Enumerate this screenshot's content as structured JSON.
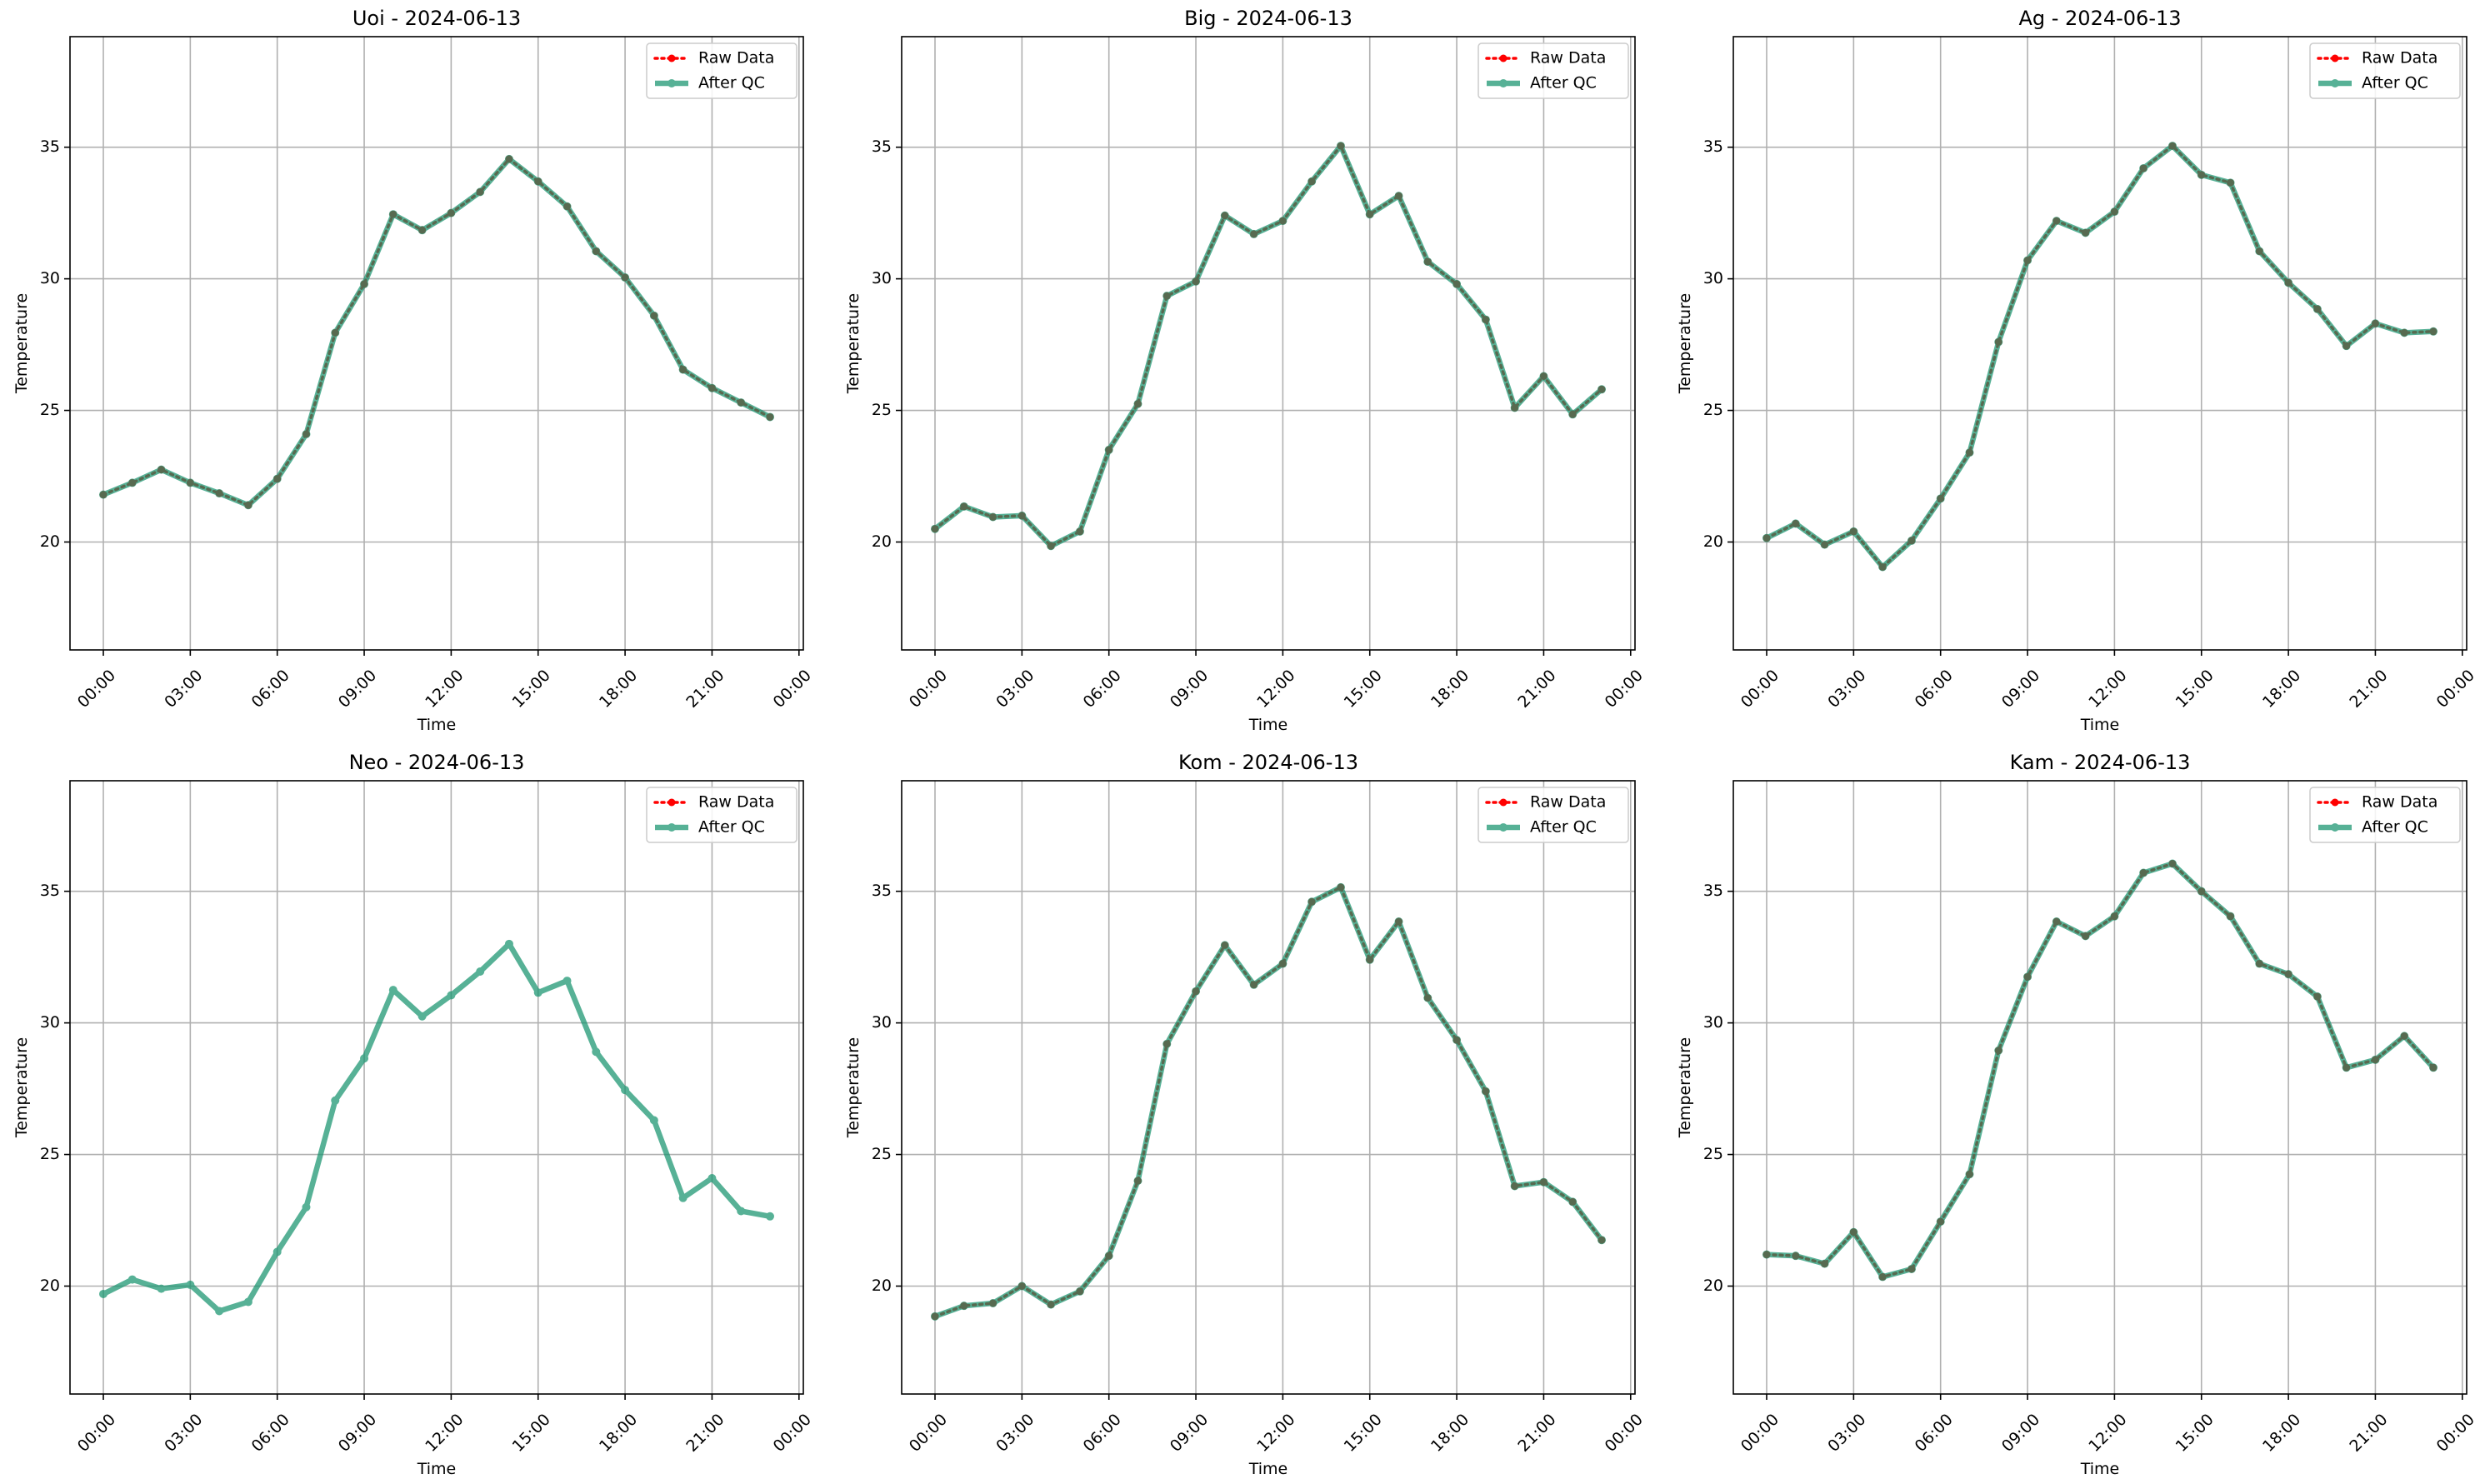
{
  "chart_data": [
    {
      "type": "line",
      "title": "Uoi - 2024-06-13",
      "xlabel": "Time",
      "ylabel": "Temperature",
      "x": [
        0,
        1,
        2,
        3,
        4,
        5,
        6,
        7,
        8,
        9,
        10,
        11,
        12,
        13,
        14,
        15,
        16,
        17,
        18,
        19,
        20,
        21,
        22,
        23
      ],
      "xlim": [
        -1.15,
        24.15
      ],
      "xticks": [
        {
          "value": 0,
          "label": "00:00"
        },
        {
          "value": 3,
          "label": "03:00"
        },
        {
          "value": 6,
          "label": "06:00"
        },
        {
          "value": 9,
          "label": "09:00"
        },
        {
          "value": 12,
          "label": "12:00"
        },
        {
          "value": 15,
          "label": "15:00"
        },
        {
          "value": 18,
          "label": "18:00"
        },
        {
          "value": 21,
          "label": "21:00"
        },
        {
          "value": 24,
          "label": "00:00"
        }
      ],
      "ylim": [
        15.9,
        39.2
      ],
      "yticks": [
        20,
        25,
        30,
        35
      ],
      "grid": true,
      "legend": "upper right",
      "series": [
        {
          "name": "Raw Data",
          "color": "#ff0000",
          "values": [
            21.8,
            22.25,
            22.75,
            22.25,
            21.85,
            21.4,
            22.4,
            24.1,
            27.95,
            29.8,
            32.45,
            31.85,
            32.5,
            33.3,
            34.55,
            33.7,
            32.75,
            31.05,
            30.05,
            28.6,
            26.55,
            25.85,
            25.3,
            24.75
          ]
        },
        {
          "name": "After QC",
          "color": "#17946f",
          "values": [
            21.8,
            22.25,
            22.75,
            22.25,
            21.85,
            21.4,
            22.4,
            24.1,
            27.95,
            29.8,
            32.45,
            31.85,
            32.5,
            33.3,
            34.55,
            33.7,
            32.75,
            31.05,
            30.05,
            28.6,
            26.55,
            25.85,
            25.3,
            24.75
          ]
        }
      ]
    },
    {
      "type": "line",
      "title": "Big - 2024-06-13",
      "xlabel": "Time",
      "ylabel": "Temperature",
      "x": [
        0,
        1,
        2,
        3,
        4,
        5,
        6,
        7,
        8,
        9,
        10,
        11,
        12,
        13,
        14,
        15,
        16,
        17,
        18,
        19,
        20,
        21,
        22,
        23
      ],
      "xlim": [
        -1.15,
        24.15
      ],
      "xticks": [
        {
          "value": 0,
          "label": "00:00"
        },
        {
          "value": 3,
          "label": "03:00"
        },
        {
          "value": 6,
          "label": "06:00"
        },
        {
          "value": 9,
          "label": "09:00"
        },
        {
          "value": 12,
          "label": "12:00"
        },
        {
          "value": 15,
          "label": "15:00"
        },
        {
          "value": 18,
          "label": "18:00"
        },
        {
          "value": 21,
          "label": "21:00"
        },
        {
          "value": 24,
          "label": "00:00"
        }
      ],
      "ylim": [
        15.9,
        39.2
      ],
      "yticks": [
        20,
        25,
        30,
        35
      ],
      "grid": true,
      "legend": "upper right",
      "series": [
        {
          "name": "Raw Data",
          "color": "#ff0000",
          "values": [
            20.5,
            21.35,
            20.95,
            21.0,
            19.85,
            20.4,
            23.5,
            25.25,
            29.35,
            29.9,
            32.4,
            31.7,
            32.2,
            33.7,
            35.05,
            32.45,
            33.15,
            30.65,
            29.8,
            28.45,
            25.1,
            26.3,
            24.85,
            25.8
          ]
        },
        {
          "name": "After QC",
          "color": "#17946f",
          "values": [
            20.5,
            21.35,
            20.95,
            21.0,
            19.85,
            20.4,
            23.5,
            25.25,
            29.35,
            29.9,
            32.4,
            31.7,
            32.2,
            33.7,
            35.05,
            32.45,
            33.15,
            30.65,
            29.8,
            28.45,
            25.1,
            26.3,
            24.85,
            25.8
          ]
        }
      ]
    },
    {
      "type": "line",
      "title": "Ag - 2024-06-13",
      "xlabel": "Time",
      "ylabel": "Temperature",
      "x": [
        0,
        1,
        2,
        3,
        4,
        5,
        6,
        7,
        8,
        9,
        10,
        11,
        12,
        13,
        14,
        15,
        16,
        17,
        18,
        19,
        20,
        21,
        22,
        23
      ],
      "xlim": [
        -1.15,
        24.15
      ],
      "xticks": [
        {
          "value": 0,
          "label": "00:00"
        },
        {
          "value": 3,
          "label": "03:00"
        },
        {
          "value": 6,
          "label": "06:00"
        },
        {
          "value": 9,
          "label": "09:00"
        },
        {
          "value": 12,
          "label": "12:00"
        },
        {
          "value": 15,
          "label": "15:00"
        },
        {
          "value": 18,
          "label": "18:00"
        },
        {
          "value": 21,
          "label": "21:00"
        },
        {
          "value": 24,
          "label": "00:00"
        }
      ],
      "ylim": [
        15.9,
        39.2
      ],
      "yticks": [
        20,
        25,
        30,
        35
      ],
      "grid": true,
      "legend": "upper right",
      "series": [
        {
          "name": "Raw Data",
          "color": "#ff0000",
          "values": [
            20.15,
            20.7,
            19.9,
            20.4,
            19.05,
            20.05,
            21.65,
            23.4,
            27.6,
            30.7,
            32.2,
            31.75,
            32.55,
            34.2,
            35.05,
            33.95,
            33.65,
            31.05,
            29.85,
            28.85,
            27.45,
            28.3,
            27.95,
            28.0
          ]
        },
        {
          "name": "After QC",
          "color": "#17946f",
          "values": [
            20.15,
            20.7,
            19.9,
            20.4,
            19.05,
            20.05,
            21.65,
            23.4,
            27.6,
            30.7,
            32.2,
            31.75,
            32.55,
            34.2,
            35.05,
            33.95,
            33.65,
            31.05,
            29.85,
            28.85,
            27.45,
            28.3,
            27.95,
            28.0
          ]
        }
      ]
    },
    {
      "type": "line",
      "title": "Neo - 2024-06-13",
      "xlabel": "Time",
      "ylabel": "Temperature",
      "x": [
        0,
        1,
        2,
        3,
        4,
        5,
        6,
        7,
        8,
        9,
        10,
        11,
        12,
        13,
        14,
        15,
        16,
        17,
        18,
        19,
        20,
        21,
        22,
        23
      ],
      "xlim": [
        -1.15,
        24.15
      ],
      "xticks": [
        {
          "value": 0,
          "label": "00:00"
        },
        {
          "value": 3,
          "label": "03:00"
        },
        {
          "value": 6,
          "label": "06:00"
        },
        {
          "value": 9,
          "label": "09:00"
        },
        {
          "value": 12,
          "label": "12:00"
        },
        {
          "value": 15,
          "label": "15:00"
        },
        {
          "value": 18,
          "label": "18:00"
        },
        {
          "value": 21,
          "label": "21:00"
        },
        {
          "value": 24,
          "label": "00:00"
        }
      ],
      "ylim": [
        15.9,
        39.2
      ],
      "yticks": [
        20,
        25,
        30,
        35
      ],
      "grid": true,
      "legend": "upper right",
      "series": [
        {
          "name": "Raw Data",
          "color": "#ff0000",
          "values": [
            null,
            null,
            null,
            null,
            null,
            null,
            null,
            null,
            null,
            null,
            null,
            null,
            null,
            null,
            null,
            null,
            null,
            null,
            null,
            null,
            null,
            null,
            null,
            null
          ]
        },
        {
          "name": "After QC",
          "color": "#17946f",
          "values": [
            19.7,
            20.25,
            19.9,
            20.05,
            19.05,
            19.4,
            21.3,
            23.0,
            27.05,
            28.65,
            31.25,
            30.25,
            31.05,
            31.95,
            33.0,
            31.15,
            31.6,
            28.9,
            27.45,
            26.3,
            23.35,
            24.1,
            22.85,
            22.65
          ]
        }
      ]
    },
    {
      "type": "line",
      "title": "Kom - 2024-06-13",
      "xlabel": "Time",
      "ylabel": "Temperature",
      "x": [
        0,
        1,
        2,
        3,
        4,
        5,
        6,
        7,
        8,
        9,
        10,
        11,
        12,
        13,
        14,
        15,
        16,
        17,
        18,
        19,
        20,
        21,
        22,
        23
      ],
      "xlim": [
        -1.15,
        24.15
      ],
      "xticks": [
        {
          "value": 0,
          "label": "00:00"
        },
        {
          "value": 3,
          "label": "03:00"
        },
        {
          "value": 6,
          "label": "06:00"
        },
        {
          "value": 9,
          "label": "09:00"
        },
        {
          "value": 12,
          "label": "12:00"
        },
        {
          "value": 15,
          "label": "15:00"
        },
        {
          "value": 18,
          "label": "18:00"
        },
        {
          "value": 21,
          "label": "21:00"
        },
        {
          "value": 24,
          "label": "00:00"
        }
      ],
      "ylim": [
        15.9,
        39.2
      ],
      "yticks": [
        20,
        25,
        30,
        35
      ],
      "grid": true,
      "legend": "upper right",
      "series": [
        {
          "name": "Raw Data",
          "color": "#ff0000",
          "values": [
            18.85,
            19.25,
            19.35,
            20.0,
            19.3,
            19.8,
            21.15,
            24.0,
            29.2,
            31.2,
            32.95,
            31.45,
            32.25,
            34.6,
            35.15,
            32.4,
            33.85,
            30.95,
            29.35,
            27.4,
            23.8,
            23.95,
            23.2,
            21.75
          ]
        },
        {
          "name": "After QC",
          "color": "#17946f",
          "values": [
            18.85,
            19.25,
            19.35,
            20.0,
            19.3,
            19.8,
            21.15,
            24.0,
            29.2,
            31.2,
            32.95,
            31.45,
            32.25,
            34.6,
            35.15,
            32.4,
            33.85,
            30.95,
            29.35,
            27.4,
            23.8,
            23.95,
            23.2,
            21.75
          ]
        }
      ]
    },
    {
      "type": "line",
      "title": "Kam - 2024-06-13",
      "xlabel": "Time",
      "ylabel": "Temperature",
      "x": [
        0,
        1,
        2,
        3,
        4,
        5,
        6,
        7,
        8,
        9,
        10,
        11,
        12,
        13,
        14,
        15,
        16,
        17,
        18,
        19,
        20,
        21,
        22,
        23
      ],
      "xlim": [
        -1.15,
        24.15
      ],
      "xticks": [
        {
          "value": 0,
          "label": "00:00"
        },
        {
          "value": 3,
          "label": "03:00"
        },
        {
          "value": 6,
          "label": "06:00"
        },
        {
          "value": 9,
          "label": "09:00"
        },
        {
          "value": 12,
          "label": "12:00"
        },
        {
          "value": 15,
          "label": "15:00"
        },
        {
          "value": 18,
          "label": "18:00"
        },
        {
          "value": 21,
          "label": "21:00"
        },
        {
          "value": 24,
          "label": "00:00"
        }
      ],
      "ylim": [
        15.9,
        39.2
      ],
      "yticks": [
        20,
        25,
        30,
        35
      ],
      "grid": true,
      "legend": "upper right",
      "series": [
        {
          "name": "Raw Data",
          "color": "#ff0000",
          "values": [
            21.2,
            21.15,
            20.85,
            22.05,
            20.35,
            20.65,
            22.45,
            24.25,
            28.95,
            31.75,
            33.85,
            33.3,
            34.05,
            35.7,
            36.05,
            35.0,
            34.05,
            32.25,
            31.85,
            31.0,
            28.3,
            28.6,
            29.5,
            28.3
          ]
        },
        {
          "name": "After QC",
          "color": "#17946f",
          "values": [
            21.2,
            21.15,
            20.85,
            22.05,
            20.35,
            20.65,
            22.45,
            24.25,
            28.95,
            31.75,
            33.85,
            33.3,
            34.05,
            35.7,
            36.05,
            35.0,
            34.05,
            32.25,
            31.85,
            31.0,
            28.3,
            28.6,
            29.5,
            28.3
          ]
        }
      ]
    }
  ]
}
